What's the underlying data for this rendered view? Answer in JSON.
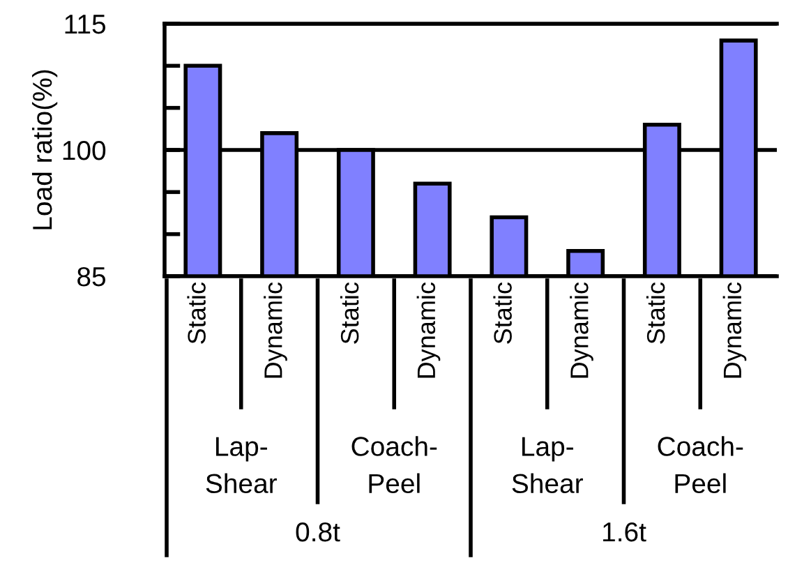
{
  "chart_data": {
    "type": "bar",
    "ylabel": "Load ratio(%)",
    "categories": [
      "Static",
      "Dynamic",
      "Static",
      "Dynamic",
      "Static",
      "Dynamic",
      "Static",
      "Dynamic"
    ],
    "values": [
      110,
      102,
      100,
      96,
      92,
      88,
      103,
      113
    ],
    "color": "#8080ff",
    "ylim": [
      85,
      115
    ],
    "yticks": [
      85,
      {
        "value": 90,
        "label": null
      },
      {
        "value": 95,
        "label": null
      },
      100,
      {
        "value": 105,
        "label": null
      },
      {
        "value": 110,
        "label": null
      },
      115
    ],
    "grid": "y",
    "annotations": [
      "Lap-\nShear",
      "Coach-\nPeel",
      "Lap-\nShear",
      "Coach-\nPeel",
      "0.8t",
      "1.6t"
    ]
  }
}
